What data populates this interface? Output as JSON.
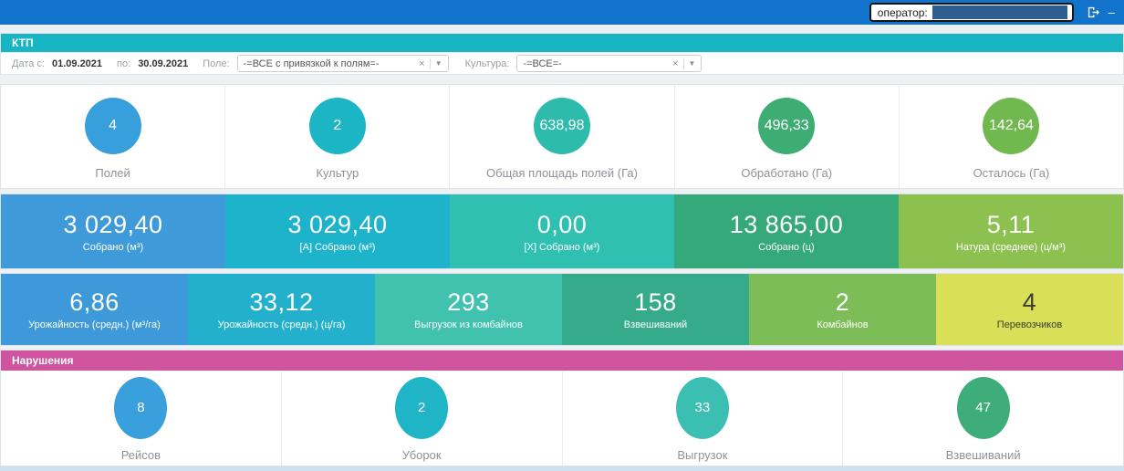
{
  "colors": {
    "topbar_blue": "#1273cd",
    "header_teal": "#18b6c4",
    "violations_pink": "#d0549d"
  },
  "topbar": {
    "operator_label": "оператор:",
    "minimize_glyph": "–"
  },
  "header": {
    "title": "КТП"
  },
  "filters": {
    "date_from_label": "Дата с:",
    "date_from_value": "01.09.2021",
    "date_to_label": "по:",
    "date_to_value": "30.09.2021",
    "field_label": "Поле:",
    "field_value": "-=ВСЕ с привязкой к полям=-",
    "culture_label": "Культура:",
    "culture_value": "-=ВСЕ=-",
    "clear_glyph": "×",
    "caret_glyph": "▼"
  },
  "summary_circles": [
    {
      "value": "4",
      "label": "Полей",
      "color": "#389fdd"
    },
    {
      "value": "2",
      "label": "Культур",
      "color": "#1cb5c5"
    },
    {
      "value": "638,98",
      "label": "Общая площадь полей (Га)",
      "color": "#2dbcac"
    },
    {
      "value": "496,33",
      "label": "Обработано (Га)",
      "color": "#3ead74"
    },
    {
      "value": "142,64",
      "label": "Осталось (Га)",
      "color": "#72b851"
    }
  ],
  "tiles_row1": [
    {
      "value": "3 029,40",
      "label": "Собрано (м³)",
      "color": "#3e9ad9"
    },
    {
      "value": "3 029,40",
      "label": "[А] Собрано (м³)",
      "color": "#1cb3cb"
    },
    {
      "value": "0,00",
      "label": "[Х] Собрано (м³)",
      "color": "#2fc0b2"
    },
    {
      "value": "13 865,00",
      "label": "Собрано (ц)",
      "color": "#36a97a"
    },
    {
      "value": "5,11",
      "label": "Натура (среднее) (ц/м³)",
      "color": "#8cc04f"
    }
  ],
  "tiles_row2": [
    {
      "value": "6,86",
      "label": "Урожайность (средн.) (м³/га)",
      "color": "#3d99d9"
    },
    {
      "value": "33,12",
      "label": "Урожайность (средн.) (ц/га)",
      "color": "#22b0cc"
    },
    {
      "value": "293",
      "label": "Выгрузок из комбайнов",
      "color": "#40c2ae"
    },
    {
      "value": "158",
      "label": "Взвешиваний",
      "color": "#36ab8b"
    },
    {
      "value": "2",
      "label": "Комбайнов",
      "color": "#7dbd58"
    },
    {
      "value": "4",
      "label": "Перевозчиков",
      "color": "#d9df56",
      "text_color": "#3c3c34"
    }
  ],
  "violations": {
    "title": "Нарушения",
    "circles": [
      {
        "value": "8",
        "label": "Рейсов",
        "color": "#399fdd"
      },
      {
        "value": "2",
        "label": "Уборок",
        "color": "#1fb5c7"
      },
      {
        "value": "33",
        "label": "Выгрузок",
        "color": "#3bbfb2"
      },
      {
        "value": "47",
        "label": "Взвешиваний",
        "color": "#3ead79"
      }
    ]
  }
}
